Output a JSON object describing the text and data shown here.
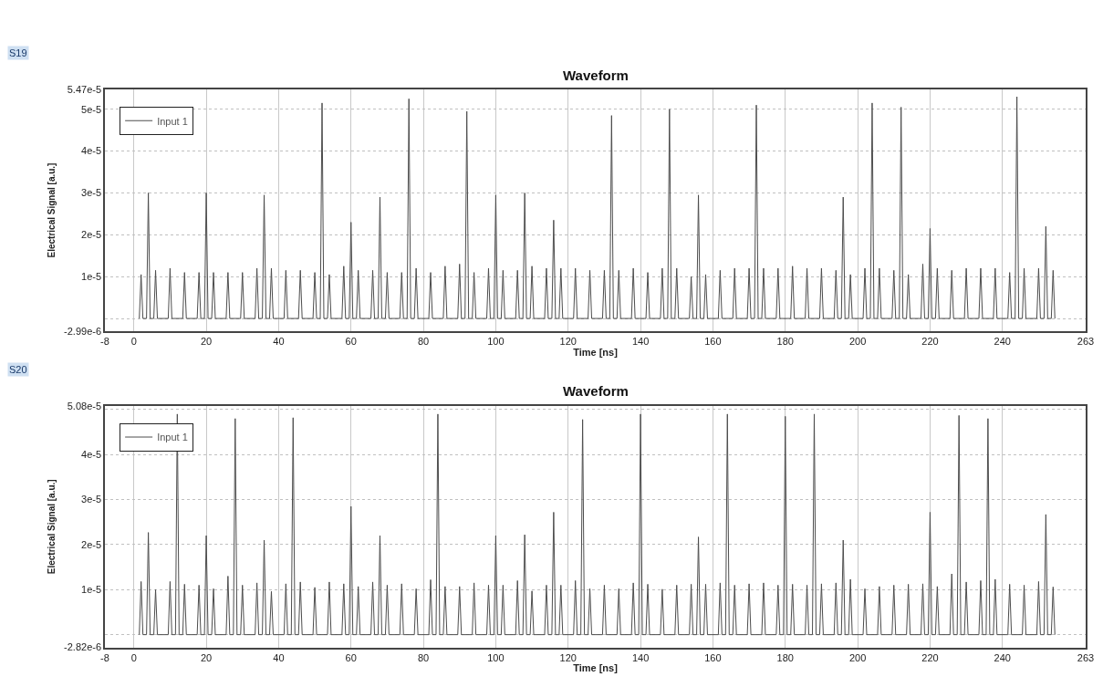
{
  "chart_data": [
    {
      "type": "line",
      "title": "Waveform",
      "xlabel": "Time [ns]",
      "ylabel": "Electrical Signal [a.u.]",
      "annotations": [
        "S19"
      ],
      "xlim": [
        -8,
        263
      ],
      "xticks": [
        -8,
        0,
        20,
        40,
        60,
        80,
        100,
        120,
        140,
        160,
        180,
        200,
        220,
        240,
        263
      ],
      "ylim": [
        -2.99e-06,
        5.47e-05
      ],
      "yticks": [
        {
          "value": -2.99e-06,
          "label": "-2.99e-6"
        },
        {
          "value": 0,
          "label": null
        },
        {
          "value": 1e-05,
          "label": "1e-5"
        },
        {
          "value": 2e-05,
          "label": "2e-5"
        },
        {
          "value": 3e-05,
          "label": "3e-5"
        },
        {
          "value": 4e-05,
          "label": "4e-5"
        },
        {
          "value": 5e-05,
          "label": "5e-5"
        },
        {
          "value": 5.47e-05,
          "label": "5.47e-5"
        }
      ],
      "grid": true,
      "legend": "top left",
      "marker": "none",
      "line_style": "solid",
      "series": [
        {
          "name": "Input 1",
          "color": "#4d4d4d",
          "x": [
            1.5,
            2,
            2.5,
            3.5,
            4,
            4.5,
            5.5,
            6,
            6.5,
            9.5,
            10,
            10.5,
            13.5,
            14,
            14.5,
            17.5,
            18,
            18.5,
            19.5,
            20,
            20.5,
            21.5,
            22,
            22.5,
            25.5,
            26,
            26.5,
            29.5,
            30,
            30.5,
            33.5,
            34,
            34.5,
            35.5,
            36,
            36.5,
            37.5,
            38,
            38.5,
            41.5,
            42,
            42.5,
            45.5,
            46,
            46.5,
            49.5,
            50,
            50.5,
            51.5,
            52,
            52.5,
            53.5,
            54,
            54.5,
            57.5,
            58,
            58.5,
            59.5,
            60,
            60.5,
            61.5,
            62,
            62.5,
            65.5,
            66,
            66.5,
            67.5,
            68,
            68.5,
            69.5,
            70,
            70.5,
            73.5,
            74,
            74.5,
            75.5,
            76,
            76.5,
            77.5,
            78,
            78.5,
            81.5,
            82,
            82.5,
            85.5,
            86,
            86.5,
            89.5,
            90,
            90.5,
            91.5,
            92,
            92.5,
            93.5,
            94,
            94.5,
            97.5,
            98,
            98.5,
            99.5,
            100,
            100.5,
            101.5,
            102,
            102.5,
            105.5,
            106,
            106.5,
            107.5,
            108,
            108.5,
            109.5,
            110,
            110.5,
            113.5,
            114,
            114.5,
            115.5,
            116,
            116.5,
            117.5,
            118,
            118.5,
            121.5,
            122,
            122.5,
            125.5,
            126,
            126.5,
            129.5,
            130,
            130.5,
            131.5,
            132,
            132.5,
            133.5,
            134,
            134.5,
            137.5,
            138,
            138.5,
            141.5,
            142,
            142.5,
            145.5,
            146,
            146.5,
            147.5,
            148,
            148.5,
            149.5,
            150,
            150.5,
            153.5,
            154,
            154.5,
            155.5,
            156,
            156.5,
            157.5,
            158,
            158.5,
            161.5,
            162,
            162.5,
            165.5,
            166,
            166.5,
            169.5,
            170,
            170.5,
            171.5,
            172,
            172.5,
            173.5,
            174,
            174.5,
            177.5,
            178,
            178.5,
            181.5,
            182,
            182.5,
            185.5,
            186,
            186.5,
            189.5,
            190,
            190.5,
            193.5,
            194,
            194.5,
            195.5,
            196,
            196.5,
            197.5,
            198,
            198.5,
            201.5,
            202,
            202.5,
            203.5,
            204,
            204.5,
            205.5,
            206,
            206.5,
            209.5,
            210,
            210.5,
            211.5,
            212,
            212.5,
            213.5,
            214,
            214.5,
            217.5,
            218,
            218.5,
            219.5,
            220,
            220.5,
            221.5,
            222,
            222.5,
            225.5,
            226,
            226.5,
            229.5,
            230,
            230.5,
            233.5,
            234,
            234.5,
            237.5,
            238,
            238.5,
            241.5,
            242,
            242.5,
            243.5,
            244,
            244.5,
            245.5,
            246,
            246.5,
            249.5,
            250,
            250.5,
            251.5,
            252,
            252.5,
            253.5,
            254,
            254.5
          ],
          "values": [
            0,
            1.05e-05,
            0,
            0,
            3e-05,
            0,
            0,
            1.15e-05,
            0,
            0,
            1.2e-05,
            0,
            0,
            1.1e-05,
            0,
            0,
            1.1e-05,
            0,
            0,
            3e-05,
            0,
            0,
            1.1e-05,
            0,
            0,
            1.1e-05,
            0,
            0,
            1.1e-05,
            0,
            0,
            1.2e-05,
            0,
            0,
            2.95e-05,
            0,
            0,
            1.2e-05,
            0,
            0,
            1.15e-05,
            0,
            0,
            1.15e-05,
            0,
            0,
            1.1e-05,
            0,
            0,
            5.15e-05,
            0,
            0,
            1.05e-05,
            0,
            0,
            1.25e-05,
            0,
            0,
            2.3e-05,
            0,
            0,
            1.15e-05,
            0,
            0,
            1.15e-05,
            0,
            0,
            2.9e-05,
            0,
            0,
            1.1e-05,
            0,
            0,
            1.1e-05,
            0,
            0,
            5.25e-05,
            0,
            0,
            1.2e-05,
            0,
            0,
            1.1e-05,
            0,
            0,
            1.25e-05,
            0,
            0,
            1.3e-05,
            0,
            0,
            4.95e-05,
            0,
            0,
            1.1e-05,
            0,
            0,
            1.2e-05,
            0,
            0,
            2.95e-05,
            0,
            0,
            1.15e-05,
            0,
            0,
            1.15e-05,
            0,
            0,
            3e-05,
            0,
            0,
            1.25e-05,
            0,
            0,
            1.2e-05,
            0,
            0,
            2.35e-05,
            0,
            0,
            1.2e-05,
            0,
            0,
            1.2e-05,
            0,
            0,
            1.15e-05,
            0,
            0,
            1.15e-05,
            0,
            0,
            4.85e-05,
            0,
            0,
            1.15e-05,
            0,
            0,
            1.2e-05,
            0,
            0,
            1.1e-05,
            0,
            0,
            1.2e-05,
            0,
            0,
            5e-05,
            0,
            0,
            1.2e-05,
            0,
            0,
            1e-05,
            0,
            0,
            2.95e-05,
            0,
            0,
            1.05e-05,
            0,
            0,
            1.15e-05,
            0,
            0,
            1.2e-05,
            0,
            0,
            1.2e-05,
            0,
            0,
            5.1e-05,
            0,
            0,
            1.2e-05,
            0,
            0,
            1.2e-05,
            0,
            0,
            1.25e-05,
            0,
            0,
            1.2e-05,
            0,
            0,
            1.2e-05,
            0,
            0,
            1.15e-05,
            0,
            0,
            2.9e-05,
            0,
            0,
            1.05e-05,
            0,
            0,
            1.2e-05,
            0,
            0,
            5.15e-05,
            0,
            0,
            1.2e-05,
            0,
            0,
            1.15e-05,
            0,
            0,
            5.05e-05,
            0,
            0,
            1.05e-05,
            0,
            0,
            1.3e-05,
            0,
            0,
            2.15e-05,
            0,
            0,
            1.2e-05,
            0,
            0,
            1.15e-05,
            0,
            0,
            1.2e-05,
            0,
            0,
            1.2e-05,
            0,
            0,
            1.2e-05,
            0,
            0,
            1.1e-05,
            0,
            0,
            5.3e-05,
            0,
            0,
            1.2e-05,
            0,
            0,
            1.2e-05,
            0,
            0,
            2.2e-05,
            0,
            0,
            1.15e-05,
            0
          ]
        }
      ]
    },
    {
      "type": "line",
      "title": "Waveform",
      "xlabel": "Time [ns]",
      "ylabel": "Electrical Signal [a.u.]",
      "annotations": [
        "S20"
      ],
      "xlim": [
        -8,
        263
      ],
      "xticks": [
        -8,
        0,
        20,
        40,
        60,
        80,
        100,
        120,
        140,
        160,
        180,
        200,
        220,
        240,
        263
      ],
      "ylim": [
        -2.82e-06,
        5.08e-05
      ],
      "yticks": [
        {
          "value": -2.82e-06,
          "label": "-2.82e-6"
        },
        {
          "value": 0,
          "label": null
        },
        {
          "value": 1e-05,
          "label": "1e-5"
        },
        {
          "value": 2e-05,
          "label": "2e-5"
        },
        {
          "value": 3e-05,
          "label": "3e-5"
        },
        {
          "value": 4e-05,
          "label": "4e-5"
        },
        {
          "value": 5e-05,
          "label": null
        },
        {
          "value": 5.08e-05,
          "label": "5.08e-5"
        }
      ],
      "grid": true,
      "legend": "top left",
      "marker": "none",
      "line_style": "solid",
      "series": [
        {
          "name": "Input 1",
          "color": "#4d4d4d",
          "x": [
            1.5,
            2,
            2.5,
            3.5,
            4,
            4.5,
            5.5,
            6,
            6.5,
            9.5,
            10,
            10.5,
            11.5,
            12,
            12.5,
            13.5,
            14,
            14.5,
            17.5,
            18,
            18.5,
            19.5,
            20,
            20.5,
            21.5,
            22,
            22.5,
            25.5,
            26,
            26.5,
            27.5,
            28,
            28.5,
            29.5,
            30,
            30.5,
            33.5,
            34,
            34.5,
            35.5,
            36,
            36.5,
            37.5,
            38,
            38.5,
            41.5,
            42,
            42.5,
            43.5,
            44,
            44.5,
            45.5,
            46,
            46.5,
            49.5,
            50,
            50.5,
            53.5,
            54,
            54.5,
            57.5,
            58,
            58.5,
            59.5,
            60,
            60.5,
            61.5,
            62,
            62.5,
            65.5,
            66,
            66.5,
            67.5,
            68,
            68.5,
            69.5,
            70,
            70.5,
            73.5,
            74,
            74.5,
            77.5,
            78,
            78.5,
            81.5,
            82,
            82.5,
            83.5,
            84,
            84.5,
            85.5,
            86,
            86.5,
            89.5,
            90,
            90.5,
            93.5,
            94,
            94.5,
            97.5,
            98,
            98.5,
            99.5,
            100,
            100.5,
            101.5,
            102,
            102.5,
            105.5,
            106,
            106.5,
            107.5,
            108,
            108.5,
            109.5,
            110,
            110.5,
            113.5,
            114,
            114.5,
            115.5,
            116,
            116.5,
            117.5,
            118,
            118.5,
            121.5,
            122,
            122.5,
            123.5,
            124,
            124.5,
            125.5,
            126,
            126.5,
            129.5,
            130,
            130.5,
            133.5,
            134,
            134.5,
            137.5,
            138,
            138.5,
            139.5,
            140,
            140.5,
            141.5,
            142,
            142.5,
            145.5,
            146,
            146.5,
            149.5,
            150,
            150.5,
            153.5,
            154,
            154.5,
            155.5,
            156,
            156.5,
            157.5,
            158,
            158.5,
            161.5,
            162,
            162.5,
            163.5,
            164,
            164.5,
            165.5,
            166,
            166.5,
            169.5,
            170,
            170.5,
            173.5,
            174,
            174.5,
            177.5,
            178,
            178.5,
            179.5,
            180,
            180.5,
            181.5,
            182,
            182.5,
            185.5,
            186,
            186.5,
            187.5,
            188,
            188.5,
            189.5,
            190,
            190.5,
            193.5,
            194,
            194.5,
            195.5,
            196,
            196.5,
            197.5,
            198,
            198.5,
            201.5,
            202,
            202.5,
            205.5,
            206,
            206.5,
            209.5,
            210,
            210.5,
            213.5,
            214,
            214.5,
            217.5,
            218,
            218.5,
            219.5,
            220,
            220.5,
            221.5,
            222,
            222.5,
            225.5,
            226,
            226.5,
            227.5,
            228,
            228.5,
            229.5,
            230,
            230.5,
            233.5,
            234,
            234.5,
            235.5,
            236,
            236.5,
            237.5,
            238,
            238.5,
            241.5,
            242,
            242.5,
            245.5,
            246,
            246.5,
            249.5,
            250,
            250.5,
            251.5,
            252,
            252.5,
            253.5,
            254,
            254.5
          ],
          "values": [
            0,
            1.18e-05,
            0,
            0,
            2.27e-05,
            0,
            0,
            1e-05,
            0,
            0,
            1.18e-05,
            0,
            0,
            4.9e-05,
            0,
            0,
            1.12e-05,
            0,
            0,
            1.1e-05,
            0,
            0,
            2.2e-05,
            0,
            0,
            1.02e-05,
            0,
            0,
            1.3e-05,
            0,
            0,
            4.8e-05,
            0,
            0,
            1.1e-05,
            0,
            0,
            1.15e-05,
            0,
            0,
            2.1e-05,
            0,
            0,
            9.6e-06,
            0,
            0,
            1.13e-05,
            0,
            0,
            4.82e-05,
            0,
            0,
            1.17e-05,
            0,
            0,
            1.05e-05,
            0,
            0,
            1.17e-05,
            0,
            0,
            1.13e-05,
            0,
            0,
            2.85e-05,
            0,
            0,
            1.07e-05,
            0,
            0,
            1.17e-05,
            0,
            0,
            2.2e-05,
            0,
            0,
            1.1e-05,
            0,
            0,
            1.13e-05,
            0,
            0,
            1.02e-05,
            0,
            0,
            1.22e-05,
            0,
            0,
            4.9e-05,
            0,
            0,
            1.07e-05,
            0,
            0,
            1.07e-05,
            0,
            0,
            1.15e-05,
            0,
            0,
            1.1e-05,
            0,
            0,
            2.2e-05,
            0,
            0,
            1.1e-05,
            0,
            0,
            1.2e-05,
            0,
            0,
            2.22e-05,
            0,
            0,
            9.7e-06,
            0,
            0,
            1.1e-05,
            0,
            0,
            2.72e-05,
            0,
            0,
            1.1e-05,
            0,
            0,
            1.2e-05,
            0,
            0,
            4.78e-05,
            0,
            0,
            1.02e-05,
            0,
            0,
            1.1e-05,
            0,
            0,
            1.02e-05,
            0,
            0,
            1.15e-05,
            0,
            0,
            4.9e-05,
            0,
            0,
            1.12e-05,
            0,
            0,
            1.01e-05,
            0,
            0,
            1.1e-05,
            0,
            0,
            1.12e-05,
            0,
            0,
            2.17e-05,
            0,
            0,
            1.12e-05,
            0,
            0,
            1.15e-05,
            0,
            0,
            4.9e-05,
            0,
            0,
            1.1e-05,
            0,
            0,
            1.13e-05,
            0,
            0,
            1.15e-05,
            0,
            0,
            1.1e-05,
            0,
            0,
            4.85e-05,
            0,
            0,
            1.12e-05,
            0,
            0,
            1.1e-05,
            0,
            0,
            4.9e-05,
            0,
            0,
            1.13e-05,
            0,
            0,
            1.15e-05,
            0,
            0,
            2.1e-05,
            0,
            0,
            1.23e-05,
            0,
            0,
            1.02e-05,
            0,
            0,
            1.07e-05,
            0,
            0,
            1.1e-05,
            0,
            0,
            1.12e-05,
            0,
            0,
            1.13e-05,
            0,
            0,
            2.72e-05,
            0,
            0,
            1.07e-05,
            0,
            0,
            1.35e-05,
            0,
            0,
            4.87e-05,
            0,
            0,
            1.17e-05,
            0,
            0,
            1.2e-05,
            0,
            0,
            4.8e-05,
            0,
            0,
            1.23e-05,
            0,
            0,
            1.12e-05,
            0,
            0,
            1.1e-05,
            0,
            0,
            1.18e-05,
            0,
            0,
            2.67e-05,
            0,
            0,
            1.06e-05,
            0
          ]
        }
      ]
    }
  ]
}
